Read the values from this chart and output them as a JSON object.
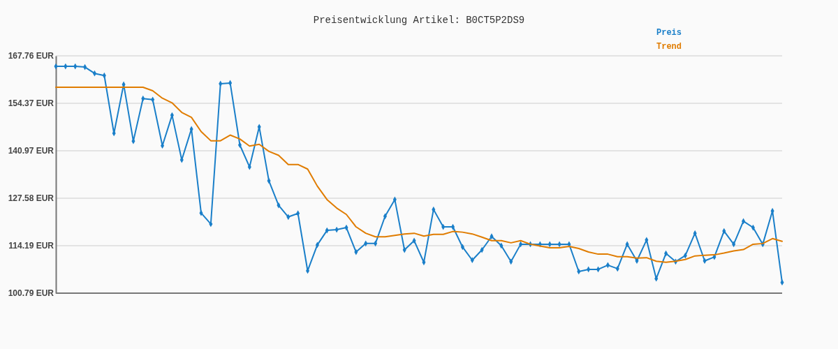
{
  "chart_data": {
    "type": "line",
    "title": "Preisentwicklung Artikel: B0CT5P2DS9",
    "categories": [
      null,
      null,
      null,
      null,
      null,
      null,
      null,
      null,
      null,
      null,
      null,
      null,
      null,
      null,
      null,
      null,
      null,
      null,
      null,
      null,
      null,
      null,
      null,
      null,
      null,
      null,
      null,
      null,
      null,
      null,
      null,
      null,
      null,
      null,
      null,
      null,
      null,
      null,
      null,
      null,
      null,
      null,
      null,
      null,
      null,
      null,
      null,
      null,
      null,
      null,
      null,
      null,
      null,
      null,
      null,
      null,
      null,
      null,
      null,
      null,
      null,
      null,
      null,
      null,
      null,
      null,
      null,
      null,
      null,
      null,
      null,
      null,
      null,
      null,
      null,
      null
    ],
    "ylim": [
      100.79,
      167.76
    ],
    "yticks": [
      {
        "value": 100.79,
        "label": "100.79 EUR"
      },
      {
        "value": 114.19,
        "label": "114.19 EUR"
      },
      {
        "value": 127.58,
        "label": "127.58 EUR"
      },
      {
        "value": 140.97,
        "label": "140.97 EUR"
      },
      {
        "value": 154.37,
        "label": "154.37 EUR"
      },
      {
        "value": 167.76,
        "label": "167.76 EUR"
      }
    ],
    "grid": "y",
    "legend": "top right",
    "line_style": "solid",
    "series": [
      {
        "name": "Preis",
        "color": "#1a7fc9",
        "marker": "diamond",
        "values": [
          164.8,
          164.8,
          164.8,
          164.6,
          162.8,
          162.2,
          145.9,
          159.7,
          143.7,
          155.7,
          155.4,
          142.4,
          151.0,
          138.4,
          147.1,
          123.4,
          120.3,
          159.9,
          160.1,
          142.6,
          136.4,
          147.7,
          132.5,
          125.6,
          122.3,
          123.3,
          107.1,
          114.4,
          118.5,
          118.7,
          119.3,
          112.4,
          114.8,
          114.8,
          122.5,
          127.2,
          113.0,
          115.6,
          109.5,
          124.4,
          119.5,
          119.5,
          113.8,
          110.1,
          113.0,
          116.8,
          114.2,
          109.7,
          114.6,
          114.6,
          114.6,
          114.6,
          114.6,
          114.6,
          106.9,
          107.5,
          107.5,
          108.7,
          107.7,
          114.6,
          109.9,
          115.8,
          104.9,
          112.0,
          109.7,
          111.4,
          117.7,
          109.9,
          111.0,
          118.3,
          114.6,
          121.1,
          119.3,
          114.6,
          124.0,
          103.8
        ]
      },
      {
        "name": "Trend",
        "color": "#e07c00",
        "marker": "none",
        "values": [
          158.9,
          158.9,
          158.9,
          158.9,
          158.9,
          158.9,
          158.9,
          158.9,
          158.9,
          158.9,
          157.9,
          155.8,
          154.5,
          151.8,
          150.4,
          146.4,
          143.8,
          143.8,
          145.4,
          144.3,
          142.3,
          142.8,
          140.8,
          139.7,
          137.1,
          137.1,
          135.8,
          131.0,
          127.2,
          124.8,
          123.0,
          119.5,
          117.7,
          116.7,
          116.7,
          117.1,
          117.5,
          117.7,
          116.9,
          117.4,
          117.4,
          118.2,
          118.0,
          117.5,
          116.6,
          115.6,
          115.6,
          115.0,
          115.6,
          114.6,
          114.1,
          113.6,
          113.6,
          114.0,
          113.4,
          112.4,
          111.8,
          111.8,
          111.1,
          111.1,
          110.7,
          110.8,
          109.8,
          109.5,
          109.8,
          110.3,
          111.3,
          111.5,
          111.6,
          112.1,
          112.7,
          113.1,
          114.6,
          114.8,
          116.2,
          115.4
        ]
      }
    ]
  }
}
